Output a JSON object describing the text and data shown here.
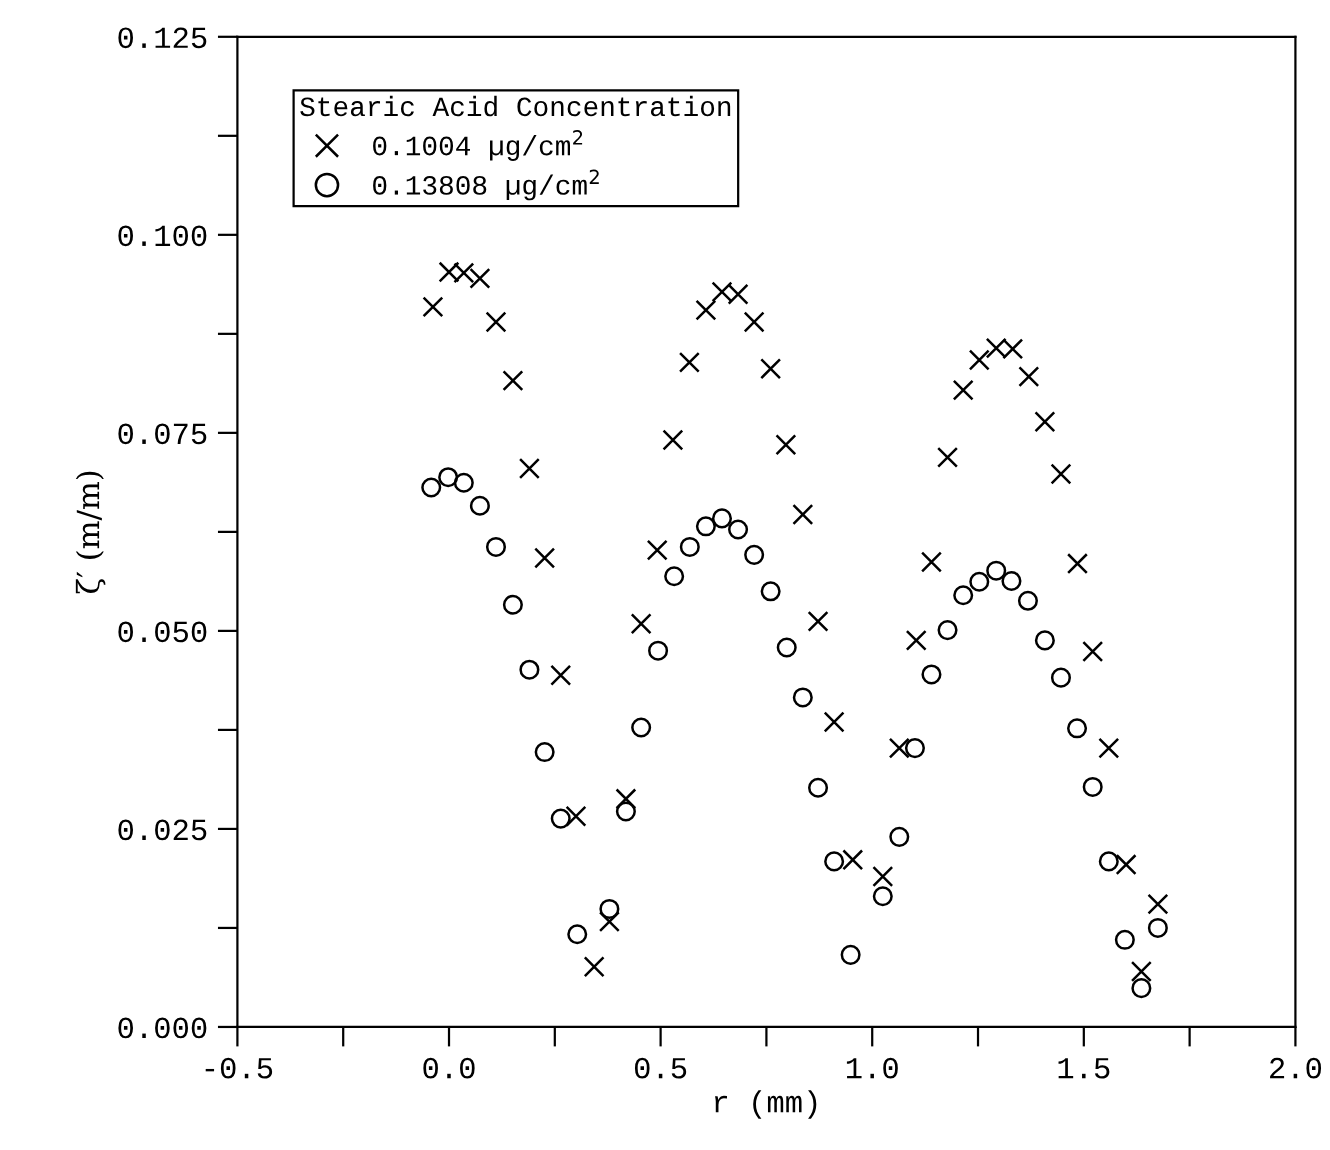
{
  "chart_data": {
    "type": "scatter",
    "xlabel": "r (mm)",
    "ylabel": "ζ′ (m/m)",
    "legend_title": "Stearic Acid Concentration",
    "legend": "top left",
    "grid": false,
    "xlim": [
      -0.5,
      2.0
    ],
    "ylim": [
      0.0,
      0.125
    ],
    "xticks": [
      {
        "value": -0.5,
        "label": "-0.5"
      },
      {
        "value": -0.25,
        "label": null
      },
      {
        "value": 0.0,
        "label": "0.0"
      },
      {
        "value": 0.25,
        "label": null
      },
      {
        "value": 0.5,
        "label": "0.5"
      },
      {
        "value": 0.75,
        "label": null
      },
      {
        "value": 1.0,
        "label": "1.0"
      },
      {
        "value": 1.25,
        "label": null
      },
      {
        "value": 1.5,
        "label": "1.5"
      },
      {
        "value": 1.75,
        "label": null
      },
      {
        "value": 2.0,
        "label": "2.0"
      }
    ],
    "yticks": [
      {
        "value": 0.0,
        "label": "0.000"
      },
      {
        "value": 0.0125,
        "label": null
      },
      {
        "value": 0.025,
        "label": "0.025"
      },
      {
        "value": 0.0375,
        "label": null
      },
      {
        "value": 0.05,
        "label": "0.050"
      },
      {
        "value": 0.0625,
        "label": null
      },
      {
        "value": 0.075,
        "label": "0.075"
      },
      {
        "value": 0.0875,
        "label": null
      },
      {
        "value": 0.1,
        "label": "0.100"
      },
      {
        "value": 0.1125,
        "label": null
      },
      {
        "value": 0.125,
        "label": "0.125"
      }
    ],
    "series": [
      {
        "name": "0.1004 µg/cm$^{2}$",
        "color": "#000000",
        "marker": "cross",
        "x": [
          -0.038,
          0.0,
          0.035,
          0.073,
          0.111,
          0.151,
          0.19,
          0.226,
          0.264,
          0.3,
          0.343,
          0.379,
          0.418,
          0.454,
          0.492,
          0.529,
          0.568,
          0.607,
          0.645,
          0.683,
          0.721,
          0.76,
          0.796,
          0.836,
          0.872,
          0.91,
          0.954,
          1.025,
          1.064,
          1.104,
          1.14,
          1.178,
          1.215,
          1.253,
          1.293,
          1.332,
          1.37,
          1.408,
          1.446,
          1.485,
          1.521,
          1.559,
          1.6,
          1.636,
          1.675
        ],
        "values": [
          0.0909,
          0.0953,
          0.0952,
          0.0945,
          0.089,
          0.0816,
          0.0705,
          0.0592,
          0.0444,
          0.0266,
          0.0076,
          0.0133,
          0.0288,
          0.0509,
          0.0602,
          0.0741,
          0.0839,
          0.0905,
          0.0928,
          0.0925,
          0.089,
          0.0831,
          0.0735,
          0.0647,
          0.0512,
          0.0385,
          0.0211,
          0.019,
          0.0352,
          0.0488,
          0.0587,
          0.0719,
          0.0804,
          0.0842,
          0.0857,
          0.0856,
          0.0821,
          0.0764,
          0.0698,
          0.0585,
          0.0474,
          0.0352,
          0.0205,
          0.007,
          0.0155
        ]
      },
      {
        "name": "0.13808 µg/cm$^{2}$",
        "color": "#000000",
        "marker": "circle",
        "x": [
          -0.042,
          -0.002,
          0.035,
          0.073,
          0.111,
          0.151,
          0.19,
          0.226,
          0.264,
          0.303,
          0.379,
          0.418,
          0.454,
          0.494,
          0.532,
          0.569,
          0.607,
          0.645,
          0.683,
          0.721,
          0.76,
          0.798,
          0.836,
          0.872,
          0.91,
          0.949,
          1.025,
          1.064,
          1.101,
          1.14,
          1.178,
          1.215,
          1.253,
          1.293,
          1.329,
          1.368,
          1.408,
          1.446,
          1.484,
          1.521,
          1.559,
          1.597,
          1.636,
          1.675
        ],
        "values": [
          0.0681,
          0.0694,
          0.0687,
          0.0658,
          0.0606,
          0.0533,
          0.0451,
          0.0347,
          0.0263,
          0.0117,
          0.0149,
          0.0272,
          0.0378,
          0.0475,
          0.0569,
          0.0606,
          0.0632,
          0.0642,
          0.0628,
          0.0596,
          0.055,
          0.0479,
          0.0416,
          0.0302,
          0.0209,
          0.0091,
          0.0165,
          0.024,
          0.0352,
          0.0445,
          0.0501,
          0.0545,
          0.0562,
          0.0576,
          0.0563,
          0.0538,
          0.0488,
          0.0441,
          0.0377,
          0.0303,
          0.0209,
          0.011,
          0.0049,
          0.0125
        ]
      }
    ]
  }
}
